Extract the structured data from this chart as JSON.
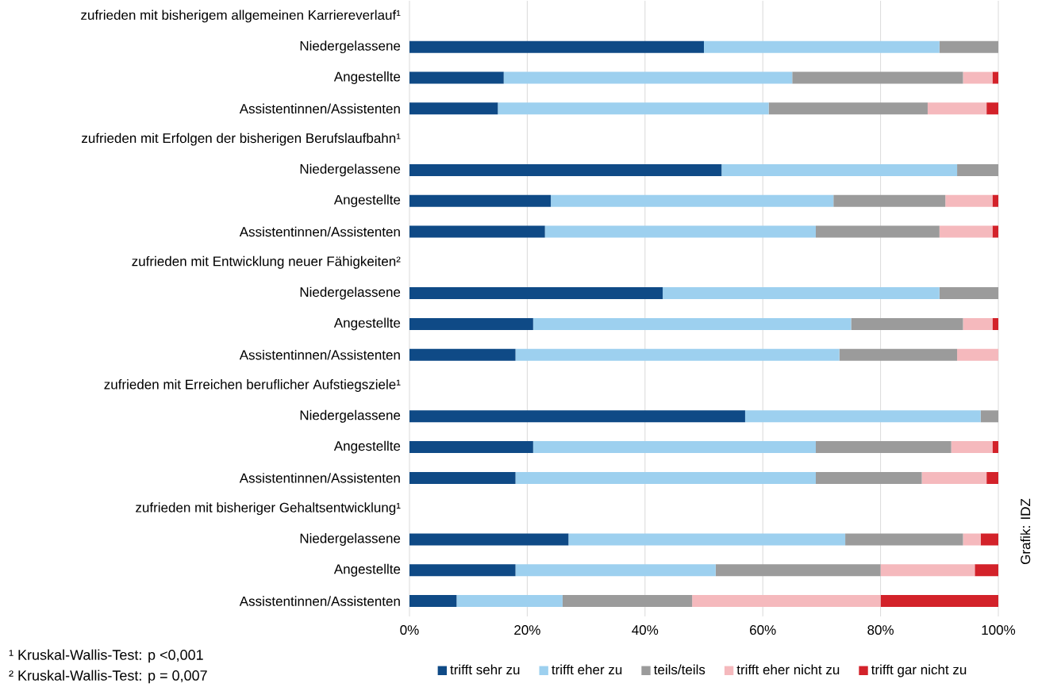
{
  "chart_data": {
    "type": "bar",
    "orientation": "horizontal",
    "stacked": true,
    "categories": [
      "zufrieden mit bisherigem allgemeinen Karriereverlauf¹",
      "Niedergelassene",
      "Angestellte",
      "Assistentinnen/Assistenten",
      "zufrieden mit Erfolgen der bisherigen Berufslaufbahn¹",
      "Niedergelassene",
      "Angestellte",
      "Assistentinnen/Assistenten",
      "zufrieden mit Entwicklung neuer Fähigkeiten²",
      "Niedergelassene",
      "Angestellte",
      "Assistentinnen/Assistenten",
      "zufrieden mit Erreichen beruflicher Aufstiegsziele¹",
      "Niedergelassene",
      "Angestellte",
      "Assistentinnen/Assistenten",
      "zufrieden mit bisheriger Gehaltsentwicklung¹",
      "Niedergelassene",
      "Angestellte",
      "Assistentinnen/Assistenten"
    ],
    "series": [
      {
        "name": "trifft sehr zu",
        "color": "#0f4a86",
        "values": [
          null,
          50,
          16,
          15,
          null,
          53,
          24,
          23,
          null,
          43,
          21,
          18,
          null,
          57,
          21,
          18,
          null,
          27,
          18,
          8
        ]
      },
      {
        "name": "trifft eher zu",
        "color": "#9dd0ef",
        "values": [
          null,
          40,
          49,
          46,
          null,
          40,
          48,
          46,
          null,
          47,
          54,
          55,
          null,
          40,
          48,
          51,
          null,
          47,
          34,
          18
        ]
      },
      {
        "name": "teils/teils",
        "color": "#9b9b9b",
        "values": [
          null,
          10,
          29,
          27,
          null,
          7,
          19,
          21,
          null,
          10,
          19,
          20,
          null,
          3,
          23,
          18,
          null,
          20,
          28,
          22
        ]
      },
      {
        "name": "trifft eher nicht zu",
        "color": "#f5b9bd",
        "values": [
          null,
          0,
          5,
          10,
          null,
          0,
          8,
          9,
          null,
          0,
          5,
          7,
          null,
          0,
          7,
          11,
          null,
          3,
          16,
          32
        ]
      },
      {
        "name": "trifft gar nicht zu",
        "color": "#d3222a",
        "values": [
          null,
          0,
          1,
          2,
          null,
          0,
          1,
          1,
          null,
          0,
          1,
          0,
          null,
          0,
          1,
          2,
          null,
          3,
          4,
          20
        ]
      }
    ],
    "xlim": [
      0,
      100
    ],
    "xticks": [
      {
        "value": 0,
        "label": "0%"
      },
      {
        "value": 20,
        "label": "20%"
      },
      {
        "value": 40,
        "label": "40%"
      },
      {
        "value": 60,
        "label": "60%"
      },
      {
        "value": 80,
        "label": "80%"
      },
      {
        "value": 100,
        "label": "100%"
      }
    ],
    "grid": "x",
    "legend": "bottom",
    "annotations": [
      "¹ Kruskal-Wallis-Test: p <0,001",
      "² Kruskal-Wallis-Test: p = 0,007",
      "Grafik: IDZ"
    ]
  }
}
